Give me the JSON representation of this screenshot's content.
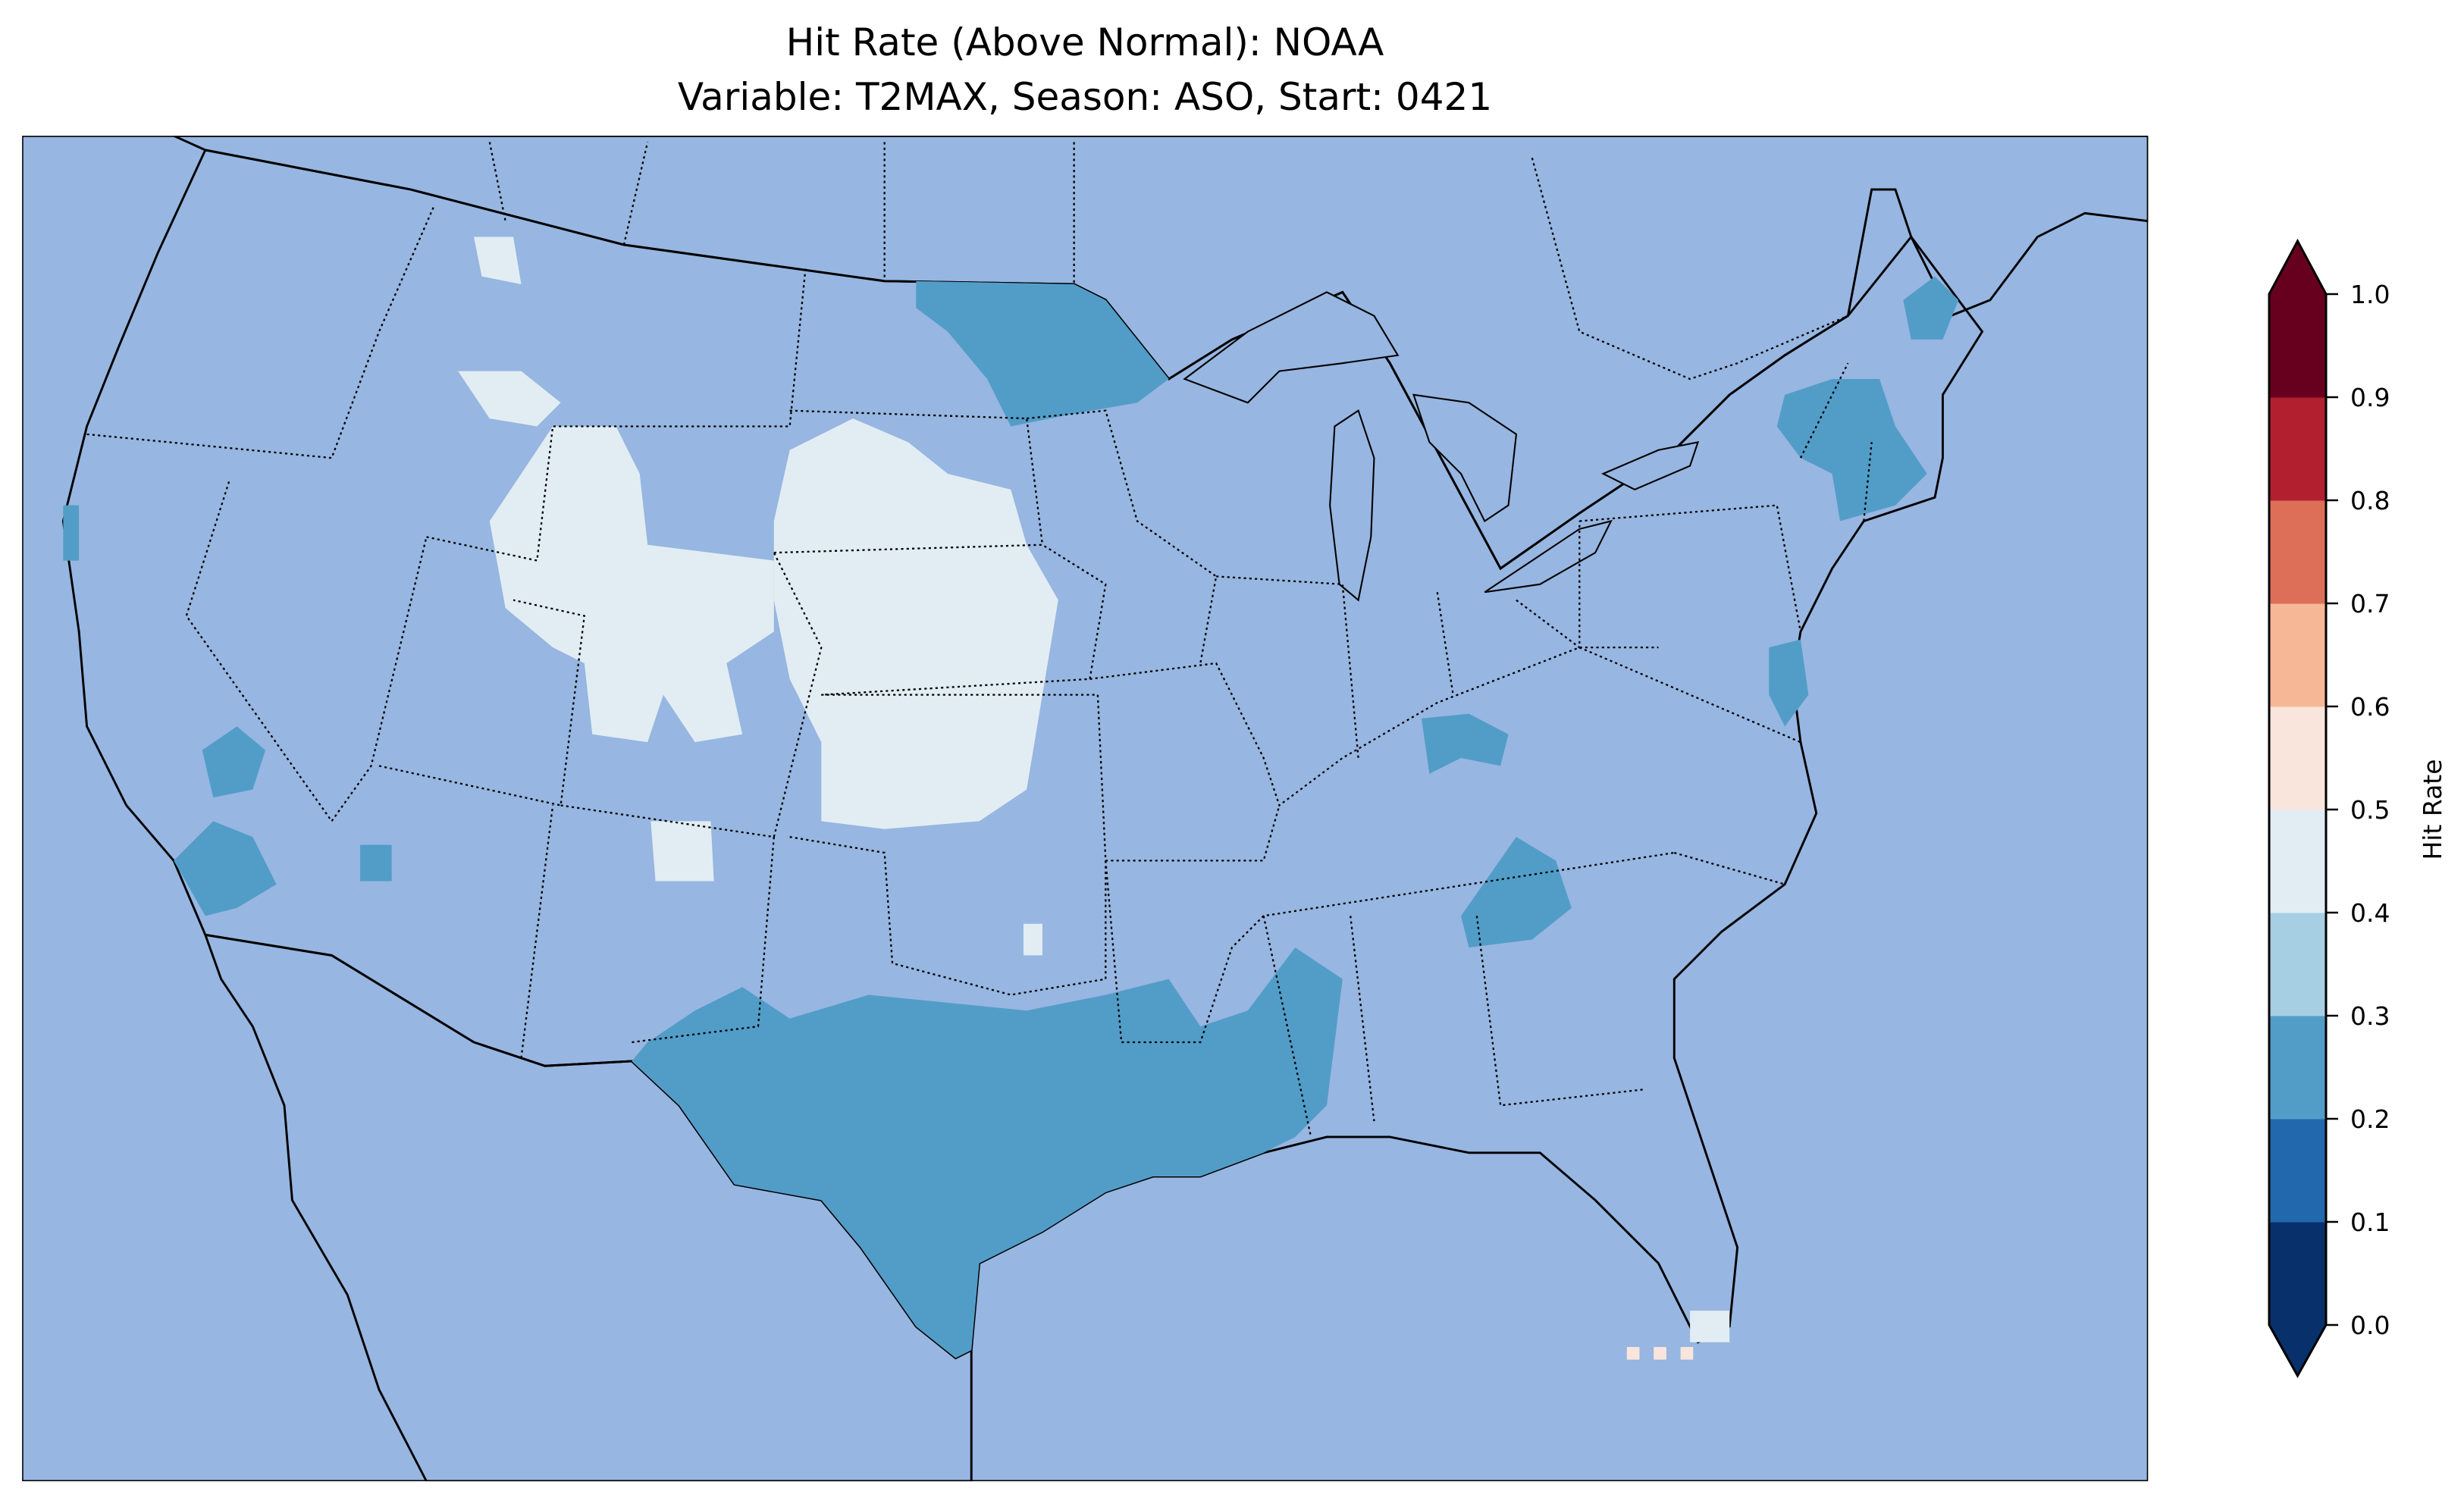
{
  "chart_data": {
    "type": "heatmap",
    "title": "Hit Rate (Above Normal): NOAA",
    "subtitle": "Variable: T2MAX, Season: ASO, Start: 0421",
    "region": "Contiguous United States",
    "colorbar": {
      "label": "Hit Rate",
      "range": [
        0.0,
        1.0
      ],
      "extend": "both",
      "ticks": [
        "0.0",
        "0.1",
        "0.2",
        "0.3",
        "0.4",
        "0.5",
        "0.6",
        "0.7",
        "0.8",
        "0.9",
        "1.0"
      ],
      "colors": [
        "#08306b",
        "#2268ad",
        "#529dc8",
        "#a7cfe4",
        "#e1edf3",
        "#f9e5dc",
        "#f6b797",
        "#dd6f58",
        "#b21f2e",
        "#67001f"
      ]
    },
    "regions": [
      {
        "name": "most of CONUS",
        "range": [
          0.3,
          0.4
        ]
      },
      {
        "name": "Texas / Louisiana / Mississippi / New Mexico south",
        "range": [
          0.2,
          0.3
        ]
      },
      {
        "name": "Minnesota / North Dakota east",
        "range": [
          0.2,
          0.3
        ]
      },
      {
        "name": "New England patches",
        "range": [
          0.2,
          0.3
        ]
      },
      {
        "name": "Southern California patches",
        "range": [
          0.2,
          0.3
        ]
      },
      {
        "name": "Kentucky / Tennessee / Delaware patches",
        "range": [
          0.2,
          0.3
        ]
      },
      {
        "name": "Wyoming / Colorado / Nebraska / Kansas / Idaho",
        "range": [
          0.4,
          0.5
        ]
      },
      {
        "name": "Florida Keys cells",
        "range": [
          0.5,
          0.6
        ]
      }
    ],
    "colors": {
      "ocean": "#97b6e1",
      "land": "#efeedb"
    }
  }
}
